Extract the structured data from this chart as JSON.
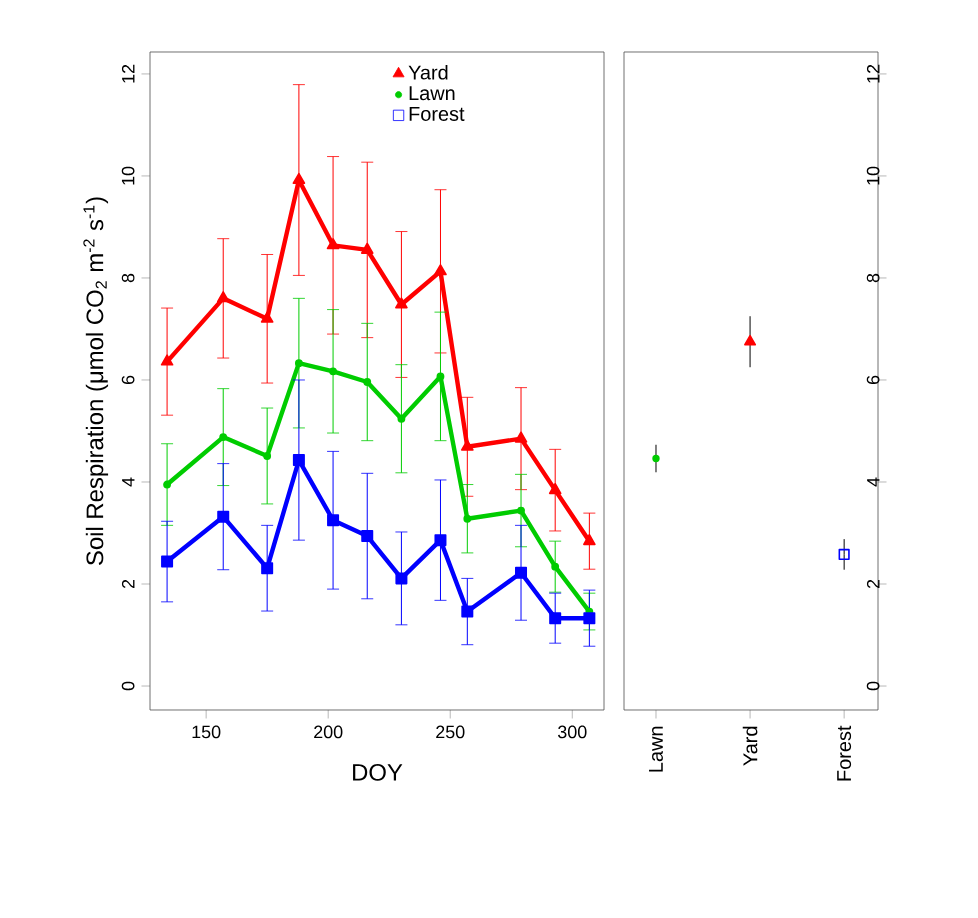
{
  "chart_data": [
    {
      "type": "line",
      "xlabel": "DOY",
      "ylabel": "Soil Respiration (μmol CO$_{2}$ m$^{-2}$ s$^{-1}$)",
      "x": [
        134,
        157,
        175,
        188,
        202,
        216,
        230,
        246,
        257,
        279,
        293,
        307
      ],
      "xlim": [
        127,
        313
      ],
      "xticks": [
        150,
        200,
        250,
        300
      ],
      "ylim": [
        -0.47,
        12.43
      ],
      "yticks": [
        0,
        2,
        4,
        6,
        8,
        10,
        12
      ],
      "legend": "top",
      "grid": false,
      "series": [
        {
          "name": "Yard",
          "color": "#ff0000",
          "marker": "triangle",
          "values": [
            6.36,
            7.6,
            7.2,
            9.92,
            8.64,
            8.55,
            7.48,
            8.13,
            4.69,
            4.85,
            3.84,
            2.84
          ],
          "errors": [
            1.05,
            1.17,
            1.26,
            1.87,
            1.74,
            1.72,
            1.43,
            1.6,
            0.97,
            1.0,
            0.8,
            0.55
          ]
        },
        {
          "name": "Lawn",
          "color": "#00cc00",
          "marker": "circle",
          "values": [
            3.95,
            4.88,
            4.51,
            6.33,
            6.17,
            5.96,
            5.24,
            6.07,
            3.28,
            3.44,
            2.34,
            1.46
          ],
          "errors": [
            0.8,
            0.95,
            0.94,
            1.27,
            1.21,
            1.15,
            1.06,
            1.26,
            0.67,
            0.71,
            0.5,
            0.36
          ]
        },
        {
          "name": "Forest",
          "color": "#0000ff",
          "marker": "square",
          "values": [
            2.44,
            3.32,
            2.31,
            4.43,
            3.25,
            2.94,
            2.11,
            2.86,
            1.46,
            2.22,
            1.33,
            1.33
          ],
          "errors": [
            0.79,
            1.04,
            0.84,
            1.57,
            1.35,
            1.23,
            0.91,
            1.18,
            0.65,
            0.93,
            0.49,
            0.55
          ]
        }
      ]
    },
    {
      "type": "scatter",
      "categories": [
        "Lawn",
        "Yard",
        "Forest"
      ],
      "ylim": [
        -0.47,
        12.43
      ],
      "yticks": [
        0,
        2,
        4,
        6,
        8,
        10,
        12
      ],
      "grid": false,
      "series": [
        {
          "color": "#00cc00",
          "marker": "circle",
          "values": [
            4.46,
            null,
            null
          ],
          "errors": [
            0.27,
            null,
            null
          ]
        },
        {
          "color": "#ff0000",
          "marker": "triangle",
          "values": [
            null,
            6.75,
            null
          ],
          "errors": [
            null,
            0.5,
            null
          ]
        },
        {
          "color": "#0000ff",
          "marker": "square",
          "values": [
            null,
            null,
            2.58
          ],
          "errors": [
            null,
            null,
            0.3
          ]
        }
      ]
    }
  ]
}
